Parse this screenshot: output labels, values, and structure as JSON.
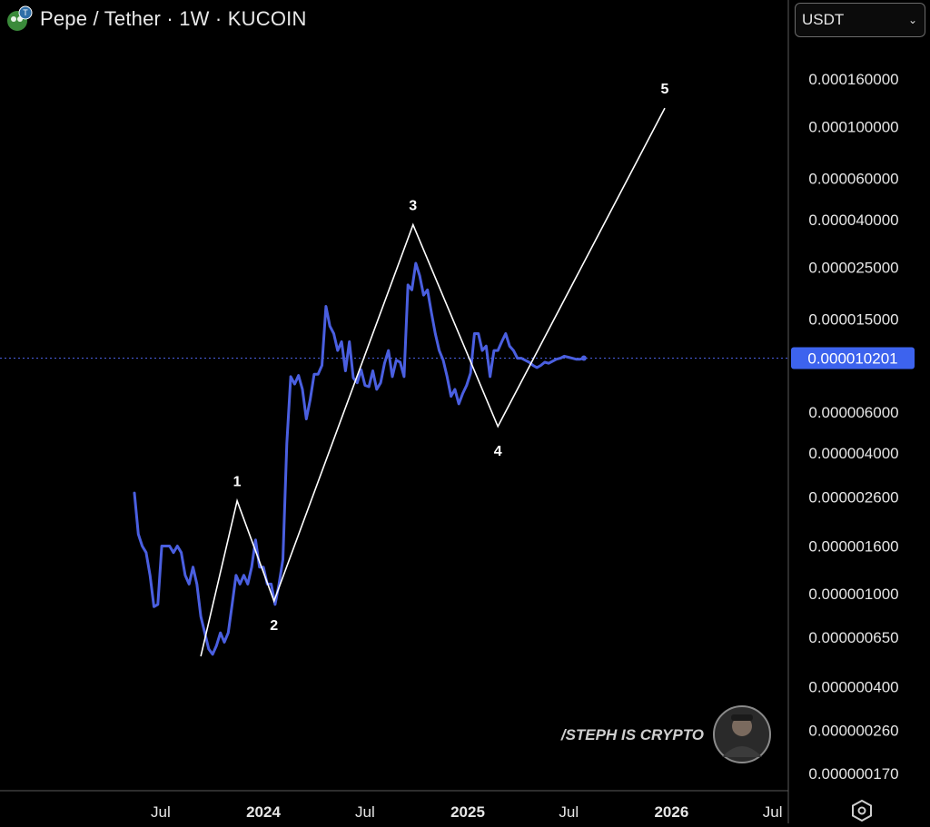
{
  "header": {
    "title": "Pepe / Tether · 1W · KUCOIN",
    "currency": "USDT"
  },
  "icons": {
    "coin": "pepe-coin-icon",
    "chevron": "chevron-down-icon",
    "settings": "hexagon-settings-icon"
  },
  "colors": {
    "series": "#4a5fe0",
    "price_badge": "#3d63ee",
    "wave": "#ffffff",
    "background": "#000000"
  },
  "watermark": {
    "text": "/STEPH IS CRYPTO"
  },
  "chart_data": {
    "type": "line",
    "scale": "log",
    "ylim": [
      1.5e-07,
      0.00025
    ],
    "xlim": [
      "2023-05-01",
      "2026-10-15"
    ],
    "y_ticks": [
      "0.000160000",
      "0.000100000",
      "0.000060000",
      "0.000040000",
      "0.000025000",
      "0.000015000",
      "0.000006000",
      "0.000004000",
      "0.000002600",
      "0.000001600",
      "0.000001000",
      "0.000000650",
      "0.000000400",
      "0.000000260",
      "0.000000170"
    ],
    "y_tick_values": [
      0.00016,
      0.0001,
      6e-05,
      4e-05,
      2.5e-05,
      1.5e-05,
      6e-06,
      4e-06,
      2.6e-06,
      1.6e-06,
      1e-06,
      6.5e-07,
      4e-07,
      2.6e-07,
      1.7e-07
    ],
    "x_ticks": [
      {
        "label": "Jul",
        "date": "2023-07-01",
        "bold": false
      },
      {
        "label": "2024",
        "date": "2024-01-01",
        "bold": true
      },
      {
        "label": "Jul",
        "date": "2024-07-01",
        "bold": false
      },
      {
        "label": "2025",
        "date": "2025-01-01",
        "bold": true
      },
      {
        "label": "Jul",
        "date": "2025-07-01",
        "bold": false
      },
      {
        "label": "2026",
        "date": "2026-01-01",
        "bold": true
      },
      {
        "label": "Jul",
        "date": "2026-07-01",
        "bold": false
      }
    ],
    "current_price": 1.0201e-05,
    "current_price_label": "0.000010201",
    "series": [
      {
        "x": [
          "2023-05-15",
          "2023-05-22",
          "2023-05-29",
          "2023-06-05",
          "2023-06-12",
          "2023-06-19",
          "2023-06-26",
          "2023-07-03",
          "2023-07-10",
          "2023-07-17",
          "2023-07-24",
          "2023-07-31",
          "2023-08-07",
          "2023-08-14",
          "2023-08-21",
          "2023-08-28",
          "2023-09-04",
          "2023-09-11",
          "2023-09-18",
          "2023-09-25",
          "2023-10-02",
          "2023-10-09",
          "2023-10-16",
          "2023-10-23",
          "2023-10-30",
          "2023-11-06",
          "2023-11-13",
          "2023-11-20",
          "2023-11-27",
          "2023-12-04",
          "2023-12-11",
          "2023-12-18",
          "2023-12-25",
          "2024-01-01",
          "2024-01-08",
          "2024-01-15",
          "2024-01-22",
          "2024-01-29",
          "2024-02-05",
          "2024-02-12",
          "2024-02-19",
          "2024-02-26",
          "2024-03-04",
          "2024-03-11",
          "2024-03-18",
          "2024-03-25",
          "2024-04-01",
          "2024-04-08",
          "2024-04-15",
          "2024-04-22",
          "2024-04-29",
          "2024-05-06",
          "2024-05-13",
          "2024-05-20",
          "2024-05-27",
          "2024-06-03",
          "2024-06-10",
          "2024-06-17",
          "2024-06-24",
          "2024-07-01",
          "2024-07-08",
          "2024-07-15",
          "2024-07-22",
          "2024-07-29",
          "2024-08-05",
          "2024-08-12",
          "2024-08-19",
          "2024-08-26",
          "2024-09-02",
          "2024-09-09",
          "2024-09-16",
          "2024-09-23",
          "2024-09-30",
          "2024-10-07",
          "2024-10-14",
          "2024-10-21",
          "2024-10-28",
          "2024-11-04",
          "2024-11-11",
          "2024-11-18",
          "2024-11-25",
          "2024-12-02",
          "2024-12-09",
          "2024-12-16",
          "2024-12-23",
          "2024-12-30",
          "2025-01-06",
          "2025-01-13",
          "2025-01-20",
          "2025-01-27",
          "2025-02-03",
          "2025-02-10",
          "2025-02-17",
          "2025-02-24",
          "2025-03-03",
          "2025-03-10",
          "2025-03-17",
          "2025-03-24",
          "2025-03-31",
          "2025-04-07",
          "2025-04-14",
          "2025-04-21",
          "2025-04-28",
          "2025-05-05",
          "2025-05-12",
          "2025-05-19",
          "2025-05-26",
          "2025-06-02",
          "2025-06-09",
          "2025-06-16",
          "2025-06-23",
          "2025-06-30",
          "2025-07-07",
          "2025-07-14",
          "2025-07-21",
          "2025-07-28"
        ],
        "y": [
          2.7e-06,
          1.8e-06,
          1.6e-06,
          1.5e-06,
          1.2e-06,
          8.8e-07,
          9e-07,
          1.6e-06,
          1.6e-06,
          1.6e-06,
          1.5e-06,
          1.6e-06,
          1.5e-06,
          1.2e-06,
          1.1e-06,
          1.3e-06,
          1.1e-06,
          8e-07,
          6.8e-07,
          5.8e-07,
          5.5e-07,
          6e-07,
          6.8e-07,
          6.2e-07,
          6.8e-07,
          9e-07,
          1.2e-06,
          1.1e-06,
          1.2e-06,
          1.1e-06,
          1.3e-06,
          1.7e-06,
          1.3e-06,
          1.3e-06,
          1.1e-06,
          1.1e-06,
          9e-07,
          1.1e-06,
          1.4e-06,
          4.4e-06,
          8.5e-06,
          7.9e-06,
          8.6e-06,
          7.5e-06,
          5.6e-06,
          6.8e-06,
          8.7e-06,
          8.7e-06,
          9.5e-06,
          1.7e-05,
          1.4e-05,
          1.3e-05,
          1.1e-05,
          1.2e-05,
          9e-06,
          1.2e-05,
          8.4e-06,
          8e-06,
          9.1e-06,
          7.8e-06,
          7.7e-06,
          9e-06,
          7.5e-06,
          8e-06,
          9.7e-06,
          1.1e-05,
          8.5e-06,
          1e-05,
          9.8e-06,
          8.5e-06,
          2.1e-05,
          2e-05,
          2.6e-05,
          2.3e-05,
          1.9e-05,
          2e-05,
          1.6e-05,
          1.3e-05,
          1.1e-05,
          1e-05,
          8.5e-06,
          7e-06,
          7.5e-06,
          6.5e-06,
          7.2e-06,
          7.8e-06,
          8.8e-06,
          1.3e-05,
          1.3e-05,
          1.1e-05,
          1.15e-05,
          8.5e-06,
          1.1e-05,
          1.1e-05,
          1.2e-05,
          1.3e-05,
          1.15e-05,
          1.1e-05,
          1.02e-05,
          1.02e-05,
          1e-05,
          9.8e-06,
          9.5e-06,
          9.3e-06,
          9.5e-06,
          9.8e-06,
          9.7e-06,
          9.9e-06,
          1.01e-05,
          1.02e-05,
          1.04e-05,
          1.03e-05,
          1.02e-05,
          1.01e-05,
          1.01e-05,
          1.02e-05
        ]
      }
    ],
    "waves": {
      "points": [
        {
          "label": "",
          "date": "2023-09-11",
          "value": 5.4e-07
        },
        {
          "label": "1",
          "date": "2023-11-15",
          "value": 2.5e-06
        },
        {
          "label": "2",
          "date": "2024-01-20",
          "value": 9.3e-07
        },
        {
          "label": "3",
          "date": "2024-09-25",
          "value": 3.8e-05
        },
        {
          "label": "4",
          "date": "2025-02-24",
          "value": 5.2e-06
        },
        {
          "label": "5",
          "date": "2025-12-20",
          "value": 0.00012
        }
      ]
    }
  }
}
